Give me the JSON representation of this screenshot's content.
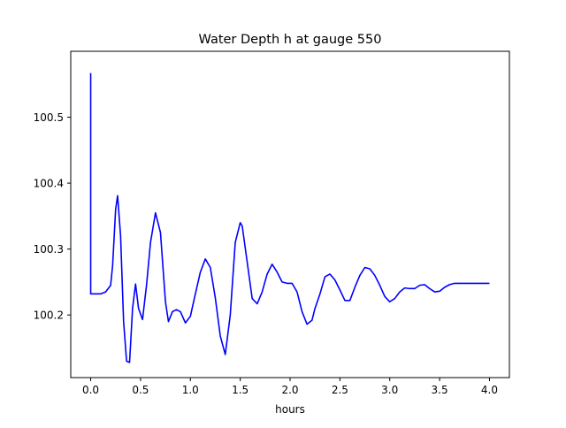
{
  "chart_data": {
    "type": "line",
    "title": "Water Depth h at gauge 550",
    "xlabel": "hours",
    "ylabel": "",
    "xlim": [
      -0.2,
      4.2
    ],
    "ylim": [
      100.105,
      100.6
    ],
    "xticks": [
      0.0,
      0.5,
      1.0,
      1.5,
      2.0,
      2.5,
      3.0,
      3.5,
      4.0
    ],
    "xtick_labels": [
      "0.0",
      "0.5",
      "1.0",
      "1.5",
      "2.0",
      "2.5",
      "3.0",
      "3.5",
      "4.0"
    ],
    "yticks": [
      100.2,
      100.3,
      100.4,
      100.5
    ],
    "ytick_labels": [
      "100.2",
      "100.3",
      "100.4",
      "100.5"
    ],
    "grid": false,
    "line_color": "#0000ff",
    "series": [
      {
        "x": [
          0.0,
          0.0,
          0.0,
          0.05,
          0.1,
          0.15,
          0.2,
          0.22,
          0.25,
          0.27,
          0.3,
          0.33,
          0.36,
          0.39,
          0.42,
          0.45,
          0.48,
          0.52,
          0.56,
          0.6,
          0.65,
          0.7,
          0.75,
          0.78,
          0.82,
          0.86,
          0.9,
          0.95,
          1.0,
          1.05,
          1.1,
          1.15,
          1.2,
          1.25,
          1.3,
          1.35,
          1.4,
          1.45,
          1.5,
          1.52,
          1.57,
          1.62,
          1.67,
          1.72,
          1.77,
          1.82,
          1.87,
          1.92,
          1.97,
          2.02,
          2.07,
          2.12,
          2.17,
          2.22,
          2.25,
          2.3,
          2.35,
          2.4,
          2.45,
          2.5,
          2.55,
          2.6,
          2.65,
          2.7,
          2.75,
          2.8,
          2.85,
          2.9,
          2.95,
          3.0,
          3.05,
          3.1,
          3.15,
          3.2,
          3.25,
          3.3,
          3.35,
          3.4,
          3.45,
          3.5,
          3.55,
          3.6,
          3.65,
          3.7,
          3.75,
          3.8,
          3.85,
          3.9,
          3.95,
          4.0
        ],
        "y": [
          100.567,
          100.567,
          100.232,
          100.232,
          100.232,
          100.235,
          100.245,
          100.275,
          100.36,
          100.381,
          100.32,
          100.19,
          100.13,
          100.128,
          100.21,
          100.247,
          100.21,
          100.193,
          100.245,
          100.31,
          100.355,
          100.325,
          100.22,
          100.19,
          100.205,
          100.208,
          100.205,
          100.188,
          100.198,
          100.232,
          100.265,
          100.285,
          100.272,
          100.226,
          100.168,
          100.14,
          100.2,
          100.31,
          100.34,
          100.335,
          100.28,
          100.225,
          100.217,
          100.235,
          100.262,
          100.277,
          100.265,
          100.25,
          100.248,
          100.248,
          100.235,
          100.205,
          100.186,
          100.192,
          100.21,
          100.232,
          100.258,
          100.262,
          100.253,
          100.238,
          100.222,
          100.222,
          100.242,
          100.26,
          100.272,
          100.27,
          100.26,
          100.245,
          100.228,
          100.22,
          100.225,
          100.235,
          100.241,
          100.24,
          100.24,
          100.245,
          100.246,
          100.24,
          100.235,
          100.236,
          100.242,
          100.246,
          100.248,
          100.248,
          100.248,
          100.248,
          100.248,
          100.248,
          100.248,
          100.248
        ]
      }
    ]
  }
}
